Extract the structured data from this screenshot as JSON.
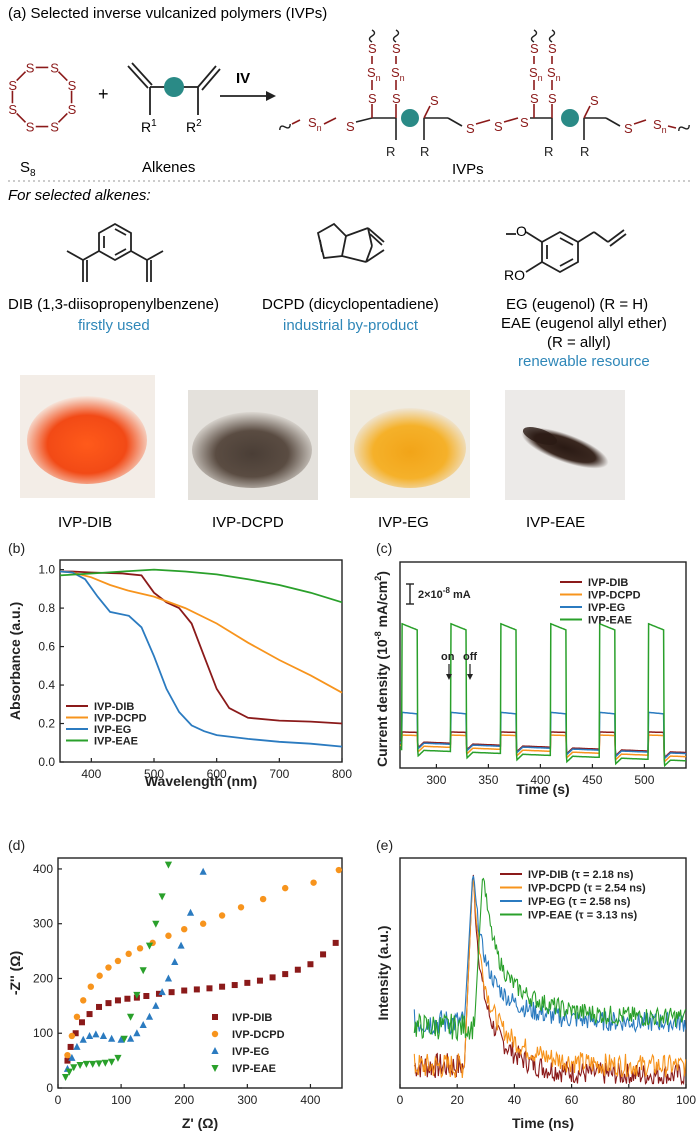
{
  "panel_a": {
    "title": "(a) Selected inverse vulcanized polymers (IVPs)",
    "s_atom": "S",
    "sn_label": "S",
    "n_sub": "n",
    "s8_label": "S",
    "s8_sub": "8",
    "plus": "+",
    "alkenes_label": "Alkenes",
    "r1": "R",
    "r1_sup": "1",
    "r2": "R",
    "r2_sup": "2",
    "reaction_label": "IV",
    "ivps_label": "IVPs",
    "for_selected": "For selected alkenes:",
    "dib_name": "DIB (1,3-diisopropenylbenzene)",
    "dib_note": "firstly used",
    "dcpd_name": "DCPD (dicyclopentadiene)",
    "dcpd_note": "industrial by-product",
    "eg_o": "O",
    "eg_ro": "RO",
    "eg_name": "EG (eugenol) (R = H)",
    "eae_name": "EAE (eugenol allyl ether)",
    "eae_r": "(R = allyl)",
    "eg_note": "renewable resource",
    "photo_labels": [
      "IVP-DIB",
      "IVP-DCPD",
      "IVP-EG",
      "IVP-EAE"
    ]
  },
  "colors": {
    "DIB": "#8b1a1a",
    "DCPD": "#f7941d",
    "EG": "#2b7bc0",
    "EAE": "#2aa02b",
    "sulfur": "#8b1a1a",
    "teal": "#2a8a86",
    "note": "#2f87b8"
  },
  "chart_data": [
    {
      "id": "b",
      "type": "line",
      "panel_label": "(b)",
      "xlabel": "Wavelength (nm)",
      "ylabel": "Absorbance (a.u.)",
      "xlim": [
        350,
        800
      ],
      "ylim": [
        0,
        1.05
      ],
      "xticks": [
        400,
        500,
        600,
        700,
        800
      ],
      "yticks": [
        0.0,
        0.2,
        0.4,
        0.6,
        0.8,
        1.0
      ],
      "legend": [
        "IVP-DIB",
        "IVP-DCPD",
        "IVP-EG",
        "IVP-EAE"
      ],
      "series": [
        {
          "name": "IVP-DIB",
          "key": "DIB",
          "x": [
            350,
            370,
            400,
            450,
            480,
            500,
            520,
            540,
            560,
            580,
            600,
            620,
            650,
            700,
            750,
            800
          ],
          "y": [
            0.99,
            0.99,
            0.985,
            0.98,
            0.97,
            0.88,
            0.83,
            0.8,
            0.72,
            0.55,
            0.38,
            0.28,
            0.23,
            0.215,
            0.21,
            0.2
          ]
        },
        {
          "name": "IVP-DCPD",
          "key": "DCPD",
          "x": [
            350,
            370,
            400,
            430,
            460,
            500,
            550,
            600,
            650,
            700,
            750,
            800
          ],
          "y": [
            0.99,
            0.985,
            0.96,
            0.92,
            0.89,
            0.86,
            0.8,
            0.72,
            0.62,
            0.53,
            0.45,
            0.36
          ]
        },
        {
          "name": "IVP-EG",
          "key": "EG",
          "x": [
            350,
            370,
            390,
            410,
            430,
            460,
            480,
            500,
            520,
            540,
            560,
            580,
            600,
            650,
            700,
            750,
            800
          ],
          "y": [
            0.99,
            0.985,
            0.95,
            0.86,
            0.78,
            0.76,
            0.7,
            0.55,
            0.38,
            0.26,
            0.19,
            0.16,
            0.14,
            0.12,
            0.105,
            0.095,
            0.08
          ]
        },
        {
          "name": "IVP-EAE",
          "key": "EAE",
          "x": [
            350,
            400,
            450,
            500,
            550,
            600,
            650,
            700,
            750,
            800
          ],
          "y": [
            0.97,
            0.98,
            0.99,
            1.0,
            0.99,
            0.975,
            0.95,
            0.92,
            0.88,
            0.83
          ]
        }
      ]
    },
    {
      "id": "c",
      "type": "line",
      "panel_label": "(c)",
      "xlabel": "Time (s)",
      "ylabel": "Current density (10",
      "ylabel_exp": "-8",
      "ylabel_mid": " mA/cm",
      "ylabel_exp2": "2",
      "ylabel_end": ")",
      "xlim": [
        265,
        540
      ],
      "ylim": [
        0,
        10
      ],
      "xticks": [
        300,
        350,
        400,
        450,
        500
      ],
      "scale_bar": "2×10",
      "scale_bar_exp": "-8",
      "scale_bar_unit": " mA",
      "annotations": [
        "on",
        "off"
      ],
      "legend": [
        "IVP-DIB",
        "IVP-DCPD",
        "IVP-EG",
        "IVP-EAE"
      ],
      "pulse_on_times": [
        267,
        314,
        362,
        410,
        457,
        504
      ],
      "pulse_width": 15,
      "pulse_period": 31.5,
      "series": [
        {
          "name": "IVP-DIB",
          "key": "DIB",
          "base": 1.3,
          "high": 1.75
        },
        {
          "name": "IVP-DCPD",
          "key": "DCPD",
          "base": 1.1,
          "high": 1.6
        },
        {
          "name": "IVP-EG",
          "key": "EG",
          "base": 1.25,
          "high": 2.7
        },
        {
          "name": "IVP-EAE",
          "key": "EAE",
          "base": 0.9,
          "high": 7.0
        }
      ]
    },
    {
      "id": "d",
      "type": "scatter",
      "panel_label": "(d)",
      "xlabel": "Z' (Ω)",
      "ylabel": "-Z'' (Ω)",
      "xlim": [
        0,
        450
      ],
      "ylim": [
        0,
        420
      ],
      "xticks": [
        0,
        100,
        200,
        300,
        400
      ],
      "yticks": [
        0,
        100,
        200,
        300,
        400
      ],
      "legend": [
        "IVP-DIB",
        "IVP-DCPD",
        "IVP-EG",
        "IVP-EAE"
      ],
      "series": [
        {
          "name": "IVP-DIB",
          "key": "DIB",
          "marker": "square",
          "x": [
            15,
            20,
            28,
            38,
            50,
            65,
            80,
            95,
            110,
            125,
            140,
            160,
            180,
            200,
            220,
            240,
            260,
            280,
            300,
            320,
            340,
            360,
            380,
            400,
            420,
            440
          ],
          "y": [
            50,
            75,
            100,
            120,
            135,
            148,
            155,
            160,
            163,
            165,
            168,
            172,
            175,
            178,
            180,
            182,
            185,
            188,
            192,
            196,
            202,
            208,
            216,
            226,
            244,
            265
          ]
        },
        {
          "name": "IVP-DCPD",
          "key": "DCPD",
          "marker": "circle",
          "x": [
            15,
            22,
            30,
            40,
            52,
            66,
            80,
            95,
            112,
            130,
            150,
            175,
            200,
            230,
            260,
            290,
            325,
            360,
            405,
            445
          ],
          "y": [
            60,
            95,
            130,
            160,
            185,
            205,
            220,
            232,
            245,
            255,
            265,
            278,
            290,
            300,
            315,
            330,
            345,
            365,
            375,
            398
          ]
        },
        {
          "name": "IVP-EG",
          "key": "EG",
          "marker": "triangle",
          "x": [
            15,
            22,
            30,
            40,
            50,
            60,
            72,
            85,
            100,
            115,
            125,
            135,
            145,
            155,
            165,
            175,
            185,
            195,
            210,
            230
          ],
          "y": [
            35,
            55,
            75,
            88,
            95,
            98,
            95,
            90,
            88,
            90,
            100,
            115,
            130,
            150,
            175,
            200,
            230,
            260,
            320,
            395
          ]
        },
        {
          "name": "IVP-EAE",
          "key": "EAE",
          "marker": "tri-down",
          "x": [
            12,
            18,
            25,
            35,
            45,
            55,
            65,
            75,
            85,
            95,
            105,
            115,
            125,
            135,
            145,
            155,
            165,
            175
          ],
          "y": [
            20,
            30,
            38,
            42,
            44,
            44,
            45,
            46,
            48,
            55,
            90,
            130,
            170,
            215,
            260,
            300,
            350,
            408
          ]
        }
      ]
    },
    {
      "id": "e",
      "type": "line",
      "panel_label": "(e)",
      "xlabel": "Time (ns)",
      "ylabel": "Intensity (a.u.)",
      "xlim": [
        0,
        100
      ],
      "ylim": [
        0,
        1.05
      ],
      "xticks": [
        0,
        20,
        40,
        60,
        80,
        100
      ],
      "legend": [
        "IVP-DIB (τ = 2.18 ns)",
        "IVP-DCPD (τ = 2.54 ns)",
        "IVP-EG (τ = 2.58 ns)",
        "IVP-EAE (τ = 3.13 ns)"
      ],
      "series": [
        {
          "name": "IVP-DIB",
          "key": "DIB",
          "tau": 2.18,
          "peak_t": 25.5,
          "start_t": 5,
          "floor": 0.1,
          "tail": 0.06
        },
        {
          "name": "IVP-DCPD",
          "key": "DCPD",
          "tau": 2.54,
          "peak_t": 25.5,
          "start_t": 5,
          "floor": 0.1,
          "tail": 0.1
        },
        {
          "name": "IVP-EG",
          "key": "EG",
          "tau": 2.58,
          "peak_t": 25.5,
          "start_t": 5,
          "floor": 0.3,
          "tail": 0.3
        },
        {
          "name": "IVP-EAE",
          "key": "EAE",
          "tau": 3.13,
          "peak_t": 29,
          "start_t": 5,
          "floor": 0.28,
          "tail": 0.32
        }
      ]
    }
  ]
}
